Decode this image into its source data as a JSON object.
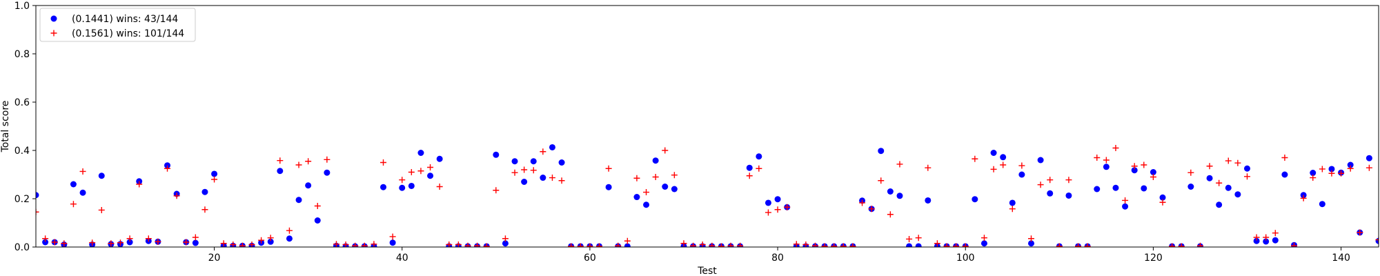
{
  "chart_data": {
    "type": "scatter",
    "xlabel": "Test",
    "ylabel": "Total score",
    "xlim": [
      1,
      144
    ],
    "ylim": [
      0,
      1.0
    ],
    "xticks": [
      20,
      40,
      60,
      80,
      100,
      120,
      140
    ],
    "yticks": [
      0.0,
      0.2,
      0.4,
      0.6,
      0.8,
      1.0
    ],
    "xtick_labels": [
      "20",
      "40",
      "60",
      "80",
      "100",
      "120",
      "140"
    ],
    "ytick_labels": [
      "0.0",
      "0.2",
      "0.4",
      "0.6",
      "0.8",
      "1.0"
    ],
    "grid": false,
    "legend_position": "top-left",
    "series": [
      {
        "name": "(0.1441) wins: 43/144",
        "marker": "circle",
        "color": "#0000ff",
        "x": [
          1,
          2,
          3,
          4,
          5,
          6,
          7,
          8,
          9,
          10,
          11,
          12,
          13,
          14,
          15,
          16,
          17,
          18,
          19,
          20,
          21,
          22,
          23,
          24,
          25,
          26,
          27,
          28,
          29,
          30,
          31,
          32,
          33,
          34,
          35,
          36,
          37,
          38,
          39,
          40,
          41,
          42,
          43,
          44,
          45,
          46,
          47,
          48,
          49,
          50,
          51,
          52,
          53,
          54,
          55,
          56,
          57,
          58,
          59,
          60,
          61,
          62,
          63,
          64,
          65,
          66,
          67,
          68,
          69,
          70,
          71,
          72,
          73,
          74,
          75,
          76,
          77,
          78,
          79,
          80,
          81,
          82,
          83,
          84,
          85,
          86,
          87,
          88,
          89,
          90,
          91,
          92,
          93,
          94,
          95,
          96,
          97,
          98,
          99,
          100,
          101,
          102,
          103,
          104,
          105,
          106,
          107,
          108,
          109,
          110,
          111,
          112,
          113,
          114,
          115,
          116,
          117,
          118,
          119,
          120,
          121,
          122,
          123,
          124,
          125,
          126,
          127,
          128,
          129,
          130,
          131,
          132,
          133,
          134,
          135,
          136,
          137,
          138,
          139,
          140,
          141,
          142,
          143,
          144
        ],
        "y": [
          0.215,
          0.02,
          0.02,
          0.01,
          0.26,
          0.225,
          0.01,
          0.295,
          0.012,
          0.012,
          0.02,
          0.272,
          0.025,
          0.022,
          0.338,
          0.22,
          0.02,
          0.017,
          0.228,
          0.303,
          0.005,
          0.005,
          0.005,
          0.005,
          0.018,
          0.022,
          0.315,
          0.035,
          0.195,
          0.255,
          0.11,
          0.308,
          0.005,
          0.003,
          0.003,
          0.003,
          0.003,
          0.248,
          0.018,
          0.245,
          0.253,
          0.39,
          0.295,
          0.365,
          0.003,
          0.003,
          0.003,
          0.003,
          0.003,
          0.382,
          0.015,
          0.355,
          0.27,
          0.355,
          0.287,
          0.413,
          0.35,
          0.003,
          0.003,
          0.003,
          0.003,
          0.248,
          0.003,
          0.003,
          0.207,
          0.175,
          0.358,
          0.25,
          0.24,
          0.003,
          0.003,
          0.003,
          0.003,
          0.003,
          0.003,
          0.003,
          0.328,
          0.375,
          0.183,
          0.198,
          0.165,
          0.003,
          0.003,
          0.003,
          0.003,
          0.003,
          0.003,
          0.003,
          0.192,
          0.158,
          0.398,
          0.23,
          0.212,
          0.003,
          0.003,
          0.193,
          0.003,
          0.003,
          0.003,
          0.003,
          0.198,
          0.015,
          0.39,
          0.372,
          0.183,
          0.3,
          0.015,
          0.36,
          0.222,
          0.003,
          0.213,
          0.003,
          0.003,
          0.24,
          0.332,
          0.245,
          0.168,
          0.318,
          0.243,
          0.31,
          0.205,
          0.003,
          0.003,
          0.25,
          0.003,
          0.285,
          0.175,
          0.245,
          0.218,
          0.325,
          0.025,
          0.023,
          0.028,
          0.3,
          0.008,
          0.215,
          0.307,
          0.178,
          0.323,
          0.308,
          0.34,
          0.06,
          0.368,
          0.025
        ]
      },
      {
        "name": "(0.1561) wins: 101/144",
        "marker": "plus",
        "color": "#ff0000",
        "x": [
          1,
          2,
          3,
          4,
          5,
          6,
          7,
          8,
          9,
          10,
          11,
          12,
          13,
          14,
          15,
          16,
          17,
          18,
          19,
          20,
          21,
          22,
          23,
          24,
          25,
          26,
          27,
          28,
          29,
          30,
          31,
          32,
          33,
          34,
          35,
          36,
          37,
          38,
          39,
          40,
          41,
          42,
          43,
          44,
          45,
          46,
          47,
          48,
          49,
          50,
          51,
          52,
          53,
          54,
          55,
          56,
          57,
          58,
          59,
          60,
          61,
          62,
          63,
          64,
          65,
          66,
          67,
          68,
          69,
          70,
          71,
          72,
          73,
          74,
          75,
          76,
          77,
          78,
          79,
          80,
          81,
          82,
          83,
          84,
          85,
          86,
          87,
          88,
          89,
          90,
          91,
          92,
          93,
          94,
          95,
          96,
          97,
          98,
          99,
          100,
          101,
          102,
          103,
          104,
          105,
          106,
          107,
          108,
          109,
          110,
          111,
          112,
          113,
          114,
          115,
          116,
          117,
          118,
          119,
          120,
          121,
          122,
          123,
          124,
          125,
          126,
          127,
          128,
          129,
          130,
          131,
          132,
          133,
          134,
          135,
          136,
          137,
          138,
          139,
          140,
          141,
          142,
          143,
          144
        ],
        "y": [
          0.145,
          0.035,
          0.02,
          0.015,
          0.178,
          0.313,
          0.018,
          0.153,
          0.015,
          0.018,
          0.035,
          0.26,
          0.035,
          0.022,
          0.325,
          0.212,
          0.02,
          0.04,
          0.155,
          0.28,
          0.015,
          0.01,
          0.005,
          0.01,
          0.028,
          0.038,
          0.358,
          0.068,
          0.34,
          0.355,
          0.17,
          0.362,
          0.012,
          0.01,
          0.005,
          0.005,
          0.012,
          0.35,
          0.043,
          0.278,
          0.31,
          0.315,
          0.33,
          0.25,
          0.01,
          0.01,
          0.005,
          0.005,
          0.003,
          0.235,
          0.035,
          0.308,
          0.32,
          0.318,
          0.395,
          0.287,
          0.275,
          0.003,
          0.003,
          0.003,
          0.003,
          0.325,
          0.005,
          0.025,
          0.285,
          0.227,
          0.29,
          0.4,
          0.298,
          0.015,
          0.005,
          0.01,
          0.005,
          0.003,
          0.005,
          0.005,
          0.295,
          0.325,
          0.143,
          0.155,
          0.165,
          0.012,
          0.01,
          0.005,
          0.003,
          0.003,
          0.003,
          0.003,
          0.183,
          0.158,
          0.275,
          0.135,
          0.343,
          0.033,
          0.038,
          0.328,
          0.015,
          0.003,
          0.003,
          0.003,
          0.365,
          0.038,
          0.322,
          0.34,
          0.158,
          0.337,
          0.035,
          0.258,
          0.278,
          0.003,
          0.278,
          0.003,
          0.003,
          0.37,
          0.36,
          0.41,
          0.193,
          0.335,
          0.34,
          0.29,
          0.185,
          0.003,
          0.003,
          0.308,
          0.005,
          0.335,
          0.265,
          0.357,
          0.348,
          0.292,
          0.04,
          0.04,
          0.058,
          0.37,
          0.005,
          0.202,
          0.287,
          0.323,
          0.305,
          0.305,
          0.325,
          0.06,
          0.328,
          0.03
        ]
      }
    ]
  }
}
